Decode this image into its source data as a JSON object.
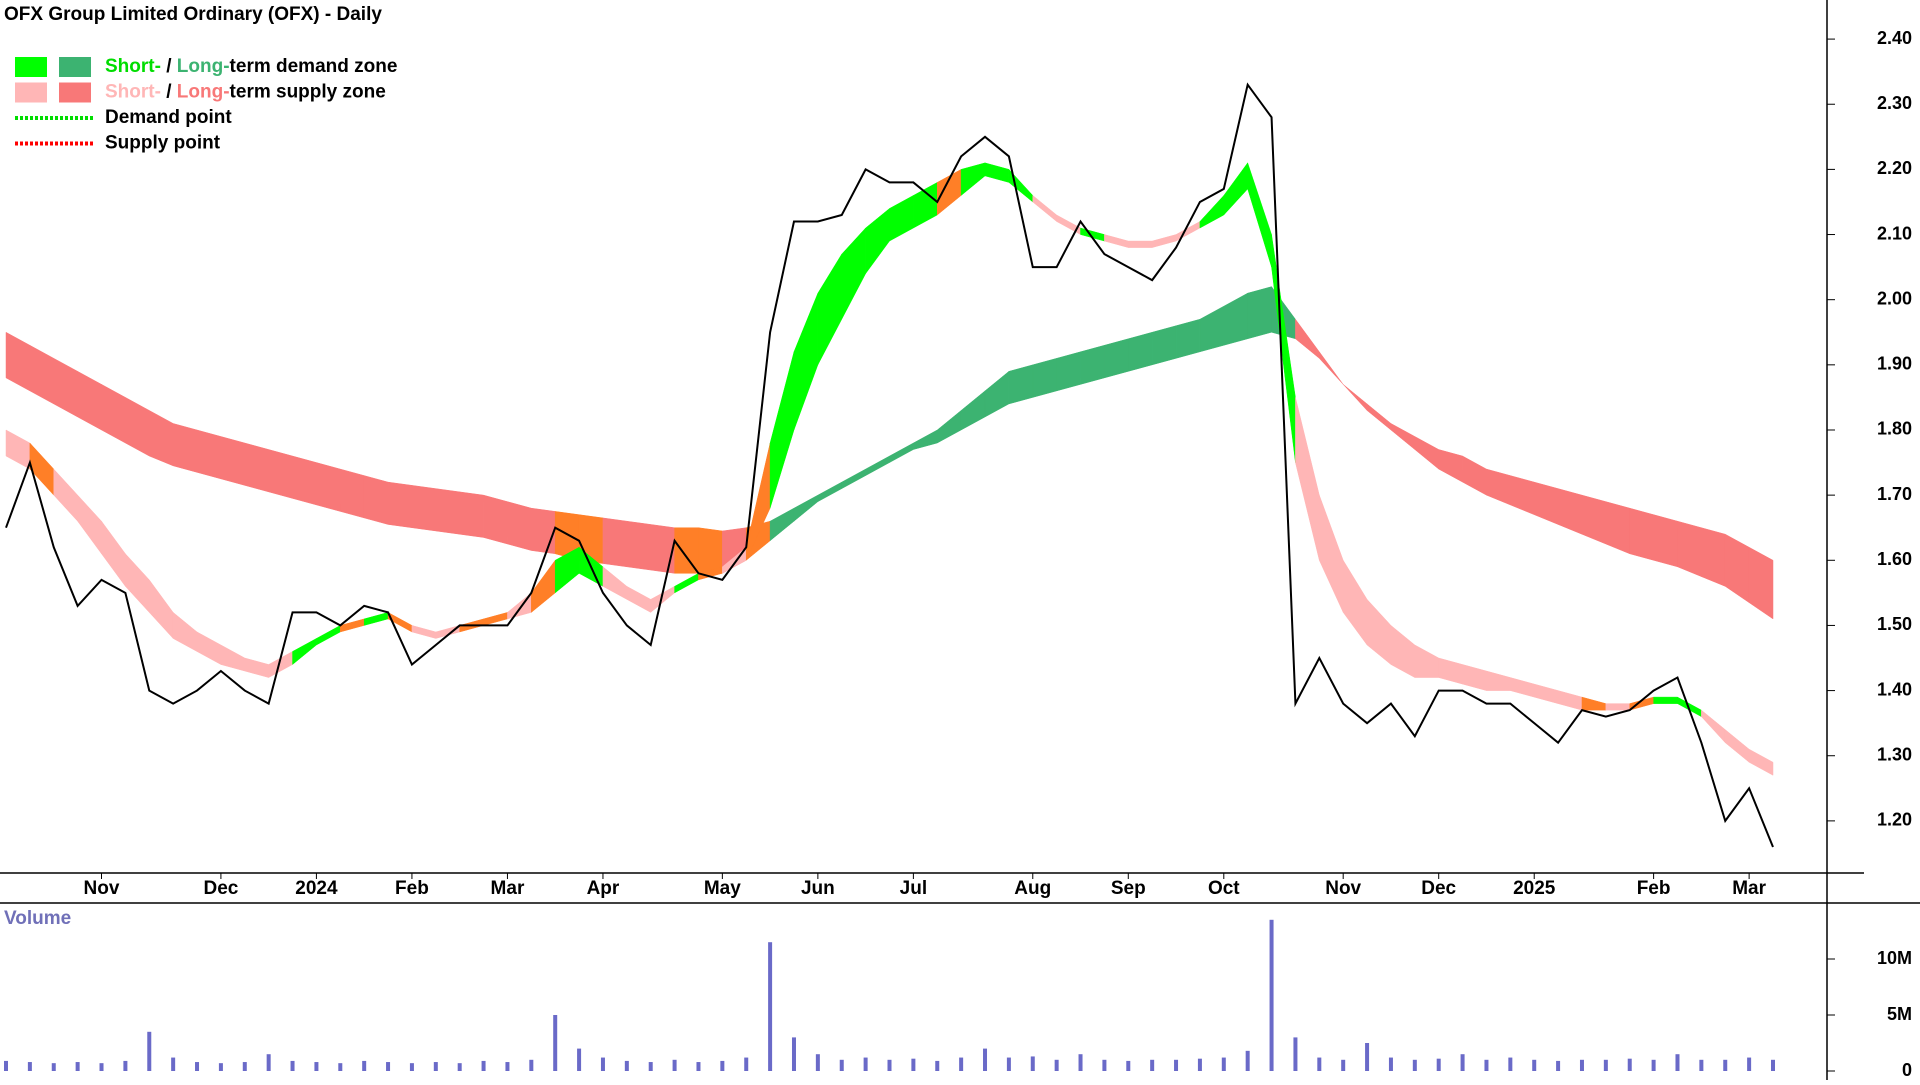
{
  "chart_data": {
    "type": "line",
    "title": "OFX Group Limited Ordinary (OFX) - Daily",
    "categories": [
      null,
      null,
      null,
      null,
      "Nov",
      null,
      null,
      null,
      null,
      "Dec",
      null,
      null,
      null,
      "2024",
      null,
      null,
      null,
      "Feb",
      null,
      null,
      null,
      "Mar",
      null,
      null,
      null,
      "Apr",
      null,
      null,
      null,
      null,
      "May",
      null,
      null,
      null,
      "Jun",
      null,
      null,
      null,
      "Jul",
      null,
      null,
      null,
      null,
      "Aug",
      null,
      null,
      null,
      "Sep",
      null,
      null,
      null,
      "Oct",
      null,
      null,
      null,
      null,
      "Nov",
      null,
      null,
      null,
      "Dec",
      null,
      null,
      null,
      "2025",
      null,
      null,
      null,
      null,
      "Feb",
      null,
      null,
      null,
      "Mar",
      null
    ],
    "values": [
      1.65,
      1.75,
      1.62,
      1.53,
      1.57,
      1.55,
      1.4,
      1.38,
      1.4,
      1.43,
      1.4,
      1.38,
      1.52,
      1.52,
      1.5,
      1.53,
      1.52,
      1.44,
      1.47,
      1.5,
      1.5,
      1.5,
      1.55,
      1.65,
      1.63,
      1.55,
      1.5,
      1.47,
      1.63,
      1.58,
      1.57,
      1.62,
      1.95,
      2.12,
      2.12,
      2.13,
      2.2,
      2.18,
      2.18,
      2.15,
      2.22,
      2.25,
      2.22,
      2.05,
      2.05,
      2.12,
      2.07,
      2.05,
      2.03,
      2.08,
      2.15,
      2.17,
      2.33,
      2.28,
      1.38,
      1.45,
      1.38,
      1.35,
      1.38,
      1.33,
      1.4,
      1.4,
      1.38,
      1.38,
      1.35,
      1.32,
      1.37,
      1.36,
      1.37,
      1.4,
      1.42,
      1.32,
      1.2,
      1.25,
      1.16
    ],
    "color": "#000000",
    "short_zone": {
      "upper": [
        1.8,
        1.78,
        1.74,
        1.7,
        1.66,
        1.61,
        1.57,
        1.52,
        1.49,
        1.47,
        1.45,
        1.44,
        1.46,
        1.48,
        1.5,
        1.51,
        1.52,
        1.5,
        1.49,
        1.5,
        1.51,
        1.52,
        1.55,
        1.6,
        1.62,
        1.59,
        1.56,
        1.54,
        1.56,
        1.58,
        1.59,
        1.62,
        1.78,
        1.92,
        2.01,
        2.07,
        2.11,
        2.14,
        2.16,
        2.18,
        2.2,
        2.21,
        2.2,
        2.16,
        2.13,
        2.11,
        2.1,
        2.09,
        2.09,
        2.1,
        2.12,
        2.16,
        2.21,
        2.1,
        1.85,
        1.7,
        1.6,
        1.54,
        1.5,
        1.47,
        1.45,
        1.44,
        1.43,
        1.42,
        1.41,
        1.4,
        1.39,
        1.38,
        1.38,
        1.39,
        1.39,
        1.37,
        1.34,
        1.31,
        1.29
      ],
      "lower": [
        1.76,
        1.74,
        1.7,
        1.66,
        1.61,
        1.56,
        1.52,
        1.48,
        1.46,
        1.44,
        1.43,
        1.42,
        1.44,
        1.47,
        1.49,
        1.5,
        1.51,
        1.49,
        1.48,
        1.49,
        1.5,
        1.51,
        1.52,
        1.55,
        1.58,
        1.56,
        1.54,
        1.52,
        1.55,
        1.57,
        1.58,
        1.6,
        1.68,
        1.8,
        1.9,
        1.97,
        2.04,
        2.09,
        2.11,
        2.13,
        2.16,
        2.19,
        2.18,
        2.15,
        2.12,
        2.1,
        2.09,
        2.08,
        2.08,
        2.09,
        2.11,
        2.13,
        2.17,
        2.05,
        1.75,
        1.6,
        1.52,
        1.47,
        1.44,
        1.42,
        1.42,
        1.41,
        1.4,
        1.4,
        1.39,
        1.38,
        1.37,
        1.37,
        1.37,
        1.38,
        1.38,
        1.36,
        1.32,
        1.29,
        1.27
      ],
      "demand_color": "#00ff00",
      "supply_color": "#ffb6b6"
    },
    "long_zone": {
      "upper": [
        1.95,
        1.93,
        1.91,
        1.89,
        1.87,
        1.85,
        1.83,
        1.81,
        1.8,
        1.79,
        1.78,
        1.77,
        1.76,
        1.75,
        1.74,
        1.73,
        1.72,
        1.715,
        1.71,
        1.705,
        1.7,
        1.69,
        1.68,
        1.675,
        1.67,
        1.665,
        1.66,
        1.655,
        1.65,
        1.65,
        1.645,
        1.65,
        1.66,
        1.68,
        1.7,
        1.72,
        1.74,
        1.76,
        1.78,
        1.8,
        1.83,
        1.86,
        1.89,
        1.9,
        1.91,
        1.92,
        1.93,
        1.94,
        1.95,
        1.96,
        1.97,
        1.99,
        2.01,
        2.02,
        1.97,
        1.92,
        1.87,
        1.84,
        1.81,
        1.79,
        1.77,
        1.76,
        1.74,
        1.73,
        1.72,
        1.71,
        1.7,
        1.69,
        1.68,
        1.67,
        1.66,
        1.65,
        1.64,
        1.62,
        1.6
      ],
      "lower": [
        1.88,
        1.86,
        1.84,
        1.82,
        1.8,
        1.78,
        1.76,
        1.745,
        1.735,
        1.725,
        1.715,
        1.705,
        1.695,
        1.685,
        1.675,
        1.665,
        1.655,
        1.65,
        1.645,
        1.64,
        1.635,
        1.625,
        1.615,
        1.61,
        1.6,
        1.595,
        1.59,
        1.585,
        1.58,
        1.58,
        1.58,
        1.6,
        1.63,
        1.66,
        1.69,
        1.71,
        1.73,
        1.75,
        1.77,
        1.78,
        1.8,
        1.82,
        1.84,
        1.85,
        1.86,
        1.87,
        1.88,
        1.89,
        1.9,
        1.91,
        1.92,
        1.93,
        1.94,
        1.95,
        1.94,
        1.91,
        1.87,
        1.83,
        1.8,
        1.77,
        1.74,
        1.72,
        1.7,
        1.685,
        1.67,
        1.655,
        1.64,
        1.625,
        1.61,
        1.6,
        1.59,
        1.575,
        1.56,
        1.535,
        1.51
      ],
      "demand_color": "#3cb371",
      "supply_color": "#f87878"
    },
    "overlap_color": "#ff7f27",
    "ylim": [
      1.12,
      2.46
    ],
    "yticks": [
      {
        "value": 1.2,
        "label": "1.20"
      },
      {
        "value": 1.3,
        "label": "1.30"
      },
      {
        "value": 1.4,
        "label": "1.40"
      },
      {
        "value": 1.5,
        "label": "1.50"
      },
      {
        "value": 1.6,
        "label": "1.60"
      },
      {
        "value": 1.7,
        "label": "1.70"
      },
      {
        "value": 1.8,
        "label": "1.80"
      },
      {
        "value": 1.9,
        "label": "1.90"
      },
      {
        "value": 2.0,
        "label": "2.00"
      },
      {
        "value": 2.1,
        "label": "2.10"
      },
      {
        "value": 2.2,
        "label": "2.20"
      },
      {
        "value": 2.3,
        "label": "2.30"
      },
      {
        "value": 2.4,
        "label": "2.40"
      }
    ],
    "volume": {
      "label": "Volume",
      "color": "#6a6ac8",
      "values": [
        900000,
        800000,
        700000,
        800000,
        700000,
        900000,
        3500000,
        1200000,
        800000,
        700000,
        800000,
        1500000,
        900000,
        800000,
        700000,
        900000,
        800000,
        700000,
        800000,
        700000,
        900000,
        800000,
        1000000,
        5000000,
        2000000,
        1200000,
        900000,
        800000,
        1000000,
        800000,
        900000,
        1200000,
        11500000,
        3000000,
        1500000,
        1000000,
        1200000,
        1000000,
        1100000,
        900000,
        1200000,
        2000000,
        1200000,
        1300000,
        1000000,
        1500000,
        1000000,
        900000,
        1000000,
        1000000,
        1100000,
        1200000,
        1800000,
        13500000,
        3000000,
        1200000,
        1000000,
        2500000,
        1200000,
        1000000,
        1100000,
        1500000,
        1000000,
        1200000,
        1000000,
        900000,
        1000000,
        1000000,
        1100000,
        1000000,
        1500000,
        1000000,
        1000000,
        1200000,
        1000000
      ],
      "ylim": [
        0,
        15000000
      ],
      "yticks": [
        0,
        {
          "value": 5000000,
          "label": "5M"
        },
        {
          "value": 10000000,
          "label": "10M"
        }
      ]
    },
    "legend": [
      {
        "swatches": [
          "#00ff00",
          "#3cb371"
        ],
        "parts": [
          {
            "text": "Short-",
            "color": "#00dd00"
          },
          {
            "text": " / ",
            "color": "#000000"
          },
          {
            "text": "Long-",
            "color": "#3cb371"
          },
          {
            "text": "term demand zone",
            "color": "#000000"
          }
        ]
      },
      {
        "swatches": [
          "#ffb6b6",
          "#f87878"
        ],
        "parts": [
          {
            "text": "Short-",
            "color": "#ffb6b6"
          },
          {
            "text": " / ",
            "color": "#000000"
          },
          {
            "text": "Long-",
            "color": "#f87878"
          },
          {
            "text": "term supply zone",
            "color": "#000000"
          }
        ]
      },
      {
        "line": "#00dd00",
        "parts": [
          {
            "text": "Demand point",
            "color": "#000000"
          }
        ]
      },
      {
        "line": "#ff0000",
        "parts": [
          {
            "text": "Supply point",
            "color": "#000000"
          }
        ]
      }
    ]
  }
}
